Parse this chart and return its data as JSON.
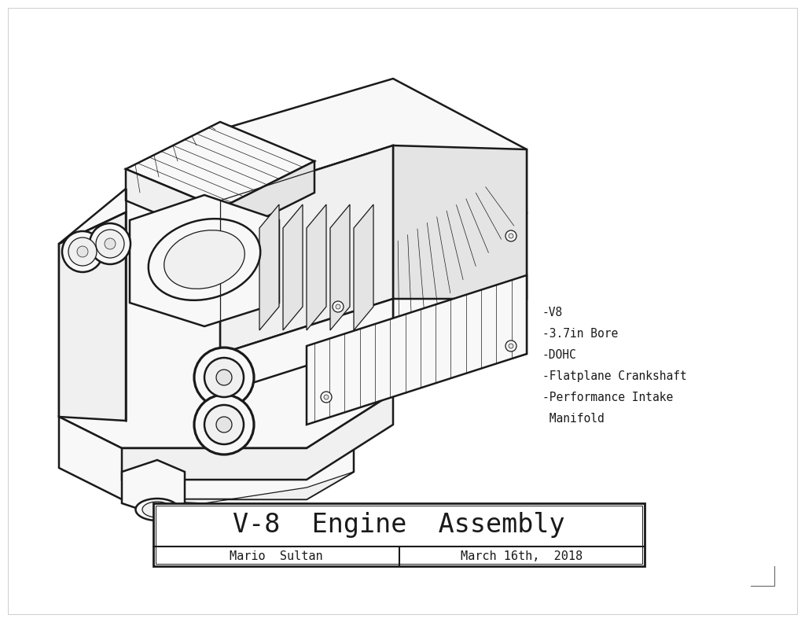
{
  "background_color": "#ffffff",
  "line_color": "#1a1a1a",
  "fill_light": "#f8f8f8",
  "fill_mid": "#f0f0f0",
  "fill_dark": "#e4e4e4",
  "title": "V-8  Engine  Assembly",
  "author": "Mario  Sultan",
  "date": "March 16th,  2018",
  "specs": [
    "-V8",
    "-3.7in Bore",
    "-DOHC",
    "-Flatplane Crankshaft",
    "-Performance Intake",
    " Manifold"
  ],
  "title_fontsize": 24,
  "spec_fontsize": 10.5,
  "author_fontsize": 11,
  "lw_outer": 1.8,
  "lw_inner": 0.9,
  "lw_thin": 0.5
}
